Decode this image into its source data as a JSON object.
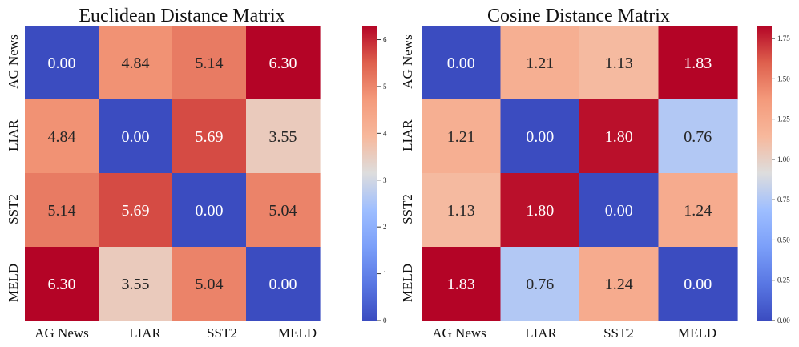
{
  "chart_data": [
    {
      "type": "heatmap",
      "id": "euclidean",
      "title": "Euclidean Distance Matrix",
      "row_labels": [
        "AG News",
        "LIAR",
        "SST2",
        "MELD"
      ],
      "col_labels": [
        "AG News",
        "LIAR",
        "SST2",
        "MELD"
      ],
      "values": [
        [
          0.0,
          4.84,
          5.14,
          6.3
        ],
        [
          4.84,
          0.0,
          5.69,
          3.55
        ],
        [
          5.14,
          5.69,
          0.0,
          5.04
        ],
        [
          6.3,
          3.55,
          5.04,
          0.0
        ]
      ],
      "value_labels": [
        [
          "0.00",
          "4.84",
          "5.14",
          "6.30"
        ],
        [
          "4.84",
          "0.00",
          "5.69",
          "3.55"
        ],
        [
          "5.14",
          "5.69",
          "0.00",
          "5.04"
        ],
        [
          "6.30",
          "3.55",
          "5.04",
          "0.00"
        ]
      ],
      "colormap": "coolwarm",
      "vmin": 0,
      "vmax": 6.3,
      "colorbar_ticks": [
        0,
        1,
        2,
        3,
        4,
        5,
        6
      ],
      "colorbar_tick_labels": [
        "0",
        "1",
        "2",
        "3",
        "4",
        "5",
        "6"
      ]
    },
    {
      "type": "heatmap",
      "id": "cosine",
      "title": "Cosine Distance Matrix",
      "row_labels": [
        "AG News",
        "LIAR",
        "SST2",
        "MELD"
      ],
      "col_labels": [
        "AG News",
        "LIAR",
        "SST2",
        "MELD"
      ],
      "values": [
        [
          0.0,
          1.21,
          1.13,
          1.83
        ],
        [
          1.21,
          0.0,
          1.8,
          0.76
        ],
        [
          1.13,
          1.8,
          0.0,
          1.24
        ],
        [
          1.83,
          0.76,
          1.24,
          0.0
        ]
      ],
      "value_labels": [
        [
          "0.00",
          "1.21",
          "1.13",
          "1.83"
        ],
        [
          "1.21",
          "0.00",
          "1.80",
          "0.76"
        ],
        [
          "1.13",
          "1.80",
          "0.00",
          "1.24"
        ],
        [
          "1.83",
          "0.76",
          "1.24",
          "0.00"
        ]
      ],
      "colormap": "coolwarm",
      "vmin": 0,
      "vmax": 1.83,
      "colorbar_ticks": [
        0,
        0.25,
        0.5,
        0.75,
        1.0,
        1.25,
        1.5,
        1.75
      ],
      "colorbar_tick_labels": [
        "0.00",
        "0.25",
        "0.50",
        "0.75",
        "1.00",
        "1.25",
        "1.50",
        "1.75"
      ]
    }
  ],
  "colors": {
    "coolwarm_low": "#3b4cc0",
    "coolwarm_mid": "#dddddd",
    "coolwarm_high": "#b40426",
    "light_text": "#ffffff",
    "dark_text": "#262626"
  }
}
